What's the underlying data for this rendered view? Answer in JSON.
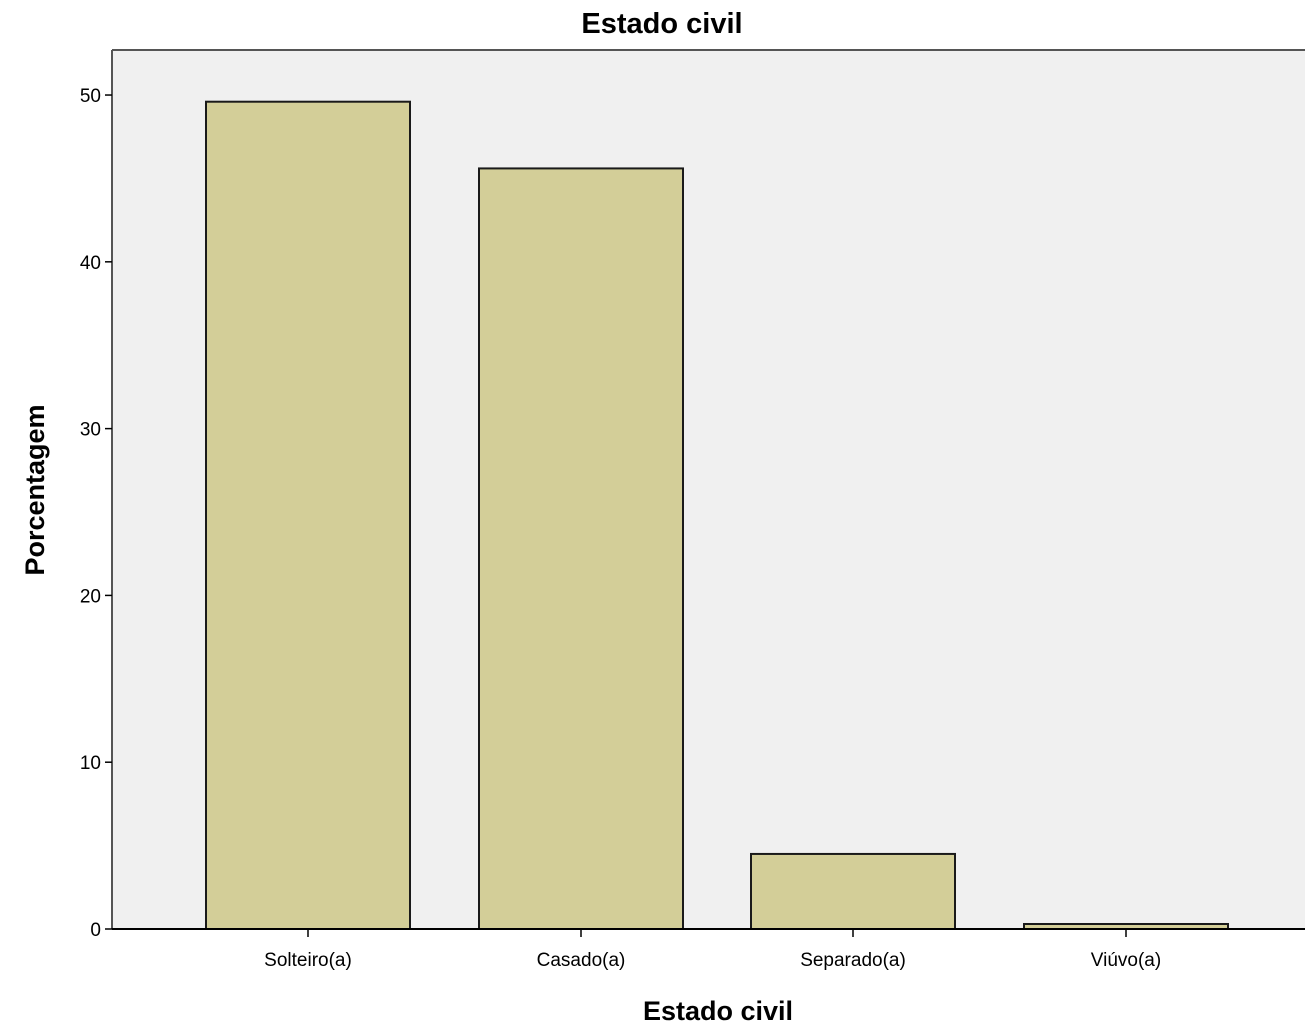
{
  "colors": {
    "plot_background": "#f0f0f0",
    "bar_fill": "#d3ce98",
    "bar_stroke": "#1a1a1a",
    "axis": "#000000",
    "frame": "#555555"
  },
  "chart_data": {
    "type": "bar",
    "title": "Estado civil",
    "xlabel": "Estado civil",
    "ylabel": "Porcentagem",
    "categories": [
      "Solteiro(a)",
      "Casado(a)",
      "Separado(a)",
      "Viúvo(a)"
    ],
    "values": [
      49.6,
      45.6,
      4.5,
      0.3
    ],
    "ylim": [
      0,
      52.7
    ],
    "yticks": [
      0,
      10,
      20,
      30,
      40,
      50
    ],
    "ytick_labels": [
      "0",
      "10",
      "20",
      "30",
      "40",
      "50"
    ],
    "grid": false,
    "legend": "none"
  }
}
